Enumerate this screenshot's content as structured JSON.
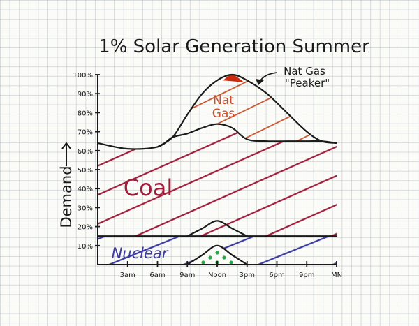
{
  "chart_data": {
    "type": "area",
    "title": "1% Solar Generation Summer",
    "ylabel": "Demand",
    "xlabel": "",
    "x_ticks": [
      "3am",
      "6am",
      "9am",
      "Noon",
      "3pm",
      "6pm",
      "9pm",
      "MN"
    ],
    "y_ticks": [
      "10%",
      "20%",
      "30%",
      "40%",
      "50%",
      "60%",
      "70%",
      "80%",
      "90%",
      "100%"
    ],
    "ylim": [
      0,
      100
    ],
    "xlim": [
      0,
      24
    ],
    "grid": true,
    "series": [
      {
        "name": "Nuclear",
        "color": "#3a3aa0",
        "x": [
          0,
          24
        ],
        "top": [
          15,
          15
        ]
      },
      {
        "name": "Solar",
        "color": "#2aa84a",
        "x": [
          9,
          10.5,
          12,
          13.5,
          15
        ],
        "top": [
          0,
          5,
          10,
          5,
          0
        ]
      },
      {
        "name": "Coal",
        "color": "#a01e3c",
        "x": [
          0,
          3,
          6,
          7.5,
          9,
          10.5,
          12,
          13.5,
          15,
          17,
          19,
          21,
          22.5,
          24
        ],
        "top": [
          64,
          61,
          62,
          67,
          69,
          72,
          74,
          72,
          66,
          65,
          65,
          65,
          65,
          64
        ]
      },
      {
        "name": "Nat Gas",
        "color": "#c8502a",
        "x": [
          6,
          7.5,
          9,
          10.5,
          12,
          13.5,
          15,
          17,
          19,
          21,
          22.5,
          24
        ],
        "top": [
          62,
          67,
          79,
          90,
          97,
          100,
          97,
          90,
          80,
          70,
          65,
          64
        ]
      },
      {
        "name": "Nat Gas \"Peaker\"",
        "color": "#cc2a0c",
        "x": [
          12.6,
          13.5,
          14.7
        ],
        "top": [
          97,
          100,
          96
        ]
      }
    ],
    "bumps": [
      {
        "x": [
          9,
          10.5,
          12,
          13.5,
          15
        ],
        "top": [
          15,
          19,
          23,
          19,
          15
        ]
      }
    ],
    "region_labels": [
      "Nuclear",
      "Coal",
      "Nat Gas"
    ],
    "annotation": "Nat Gas \"Peaker\"",
    "colors": {
      "outline": "#1a1a1a",
      "nuclear": "#3a3aa0",
      "coal": "#a01e3c",
      "nat_gas": "#c8502a",
      "peaker": "#cc2a0c",
      "solar": "#2aa84a"
    }
  },
  "labels": {
    "nuclear": "Nuclear",
    "coal": "Coal",
    "nat_gas_line1": "Nat",
    "nat_gas_line2": "Gas",
    "peaker_line1": "Nat Gas",
    "peaker_line2": "\"Peaker\""
  }
}
